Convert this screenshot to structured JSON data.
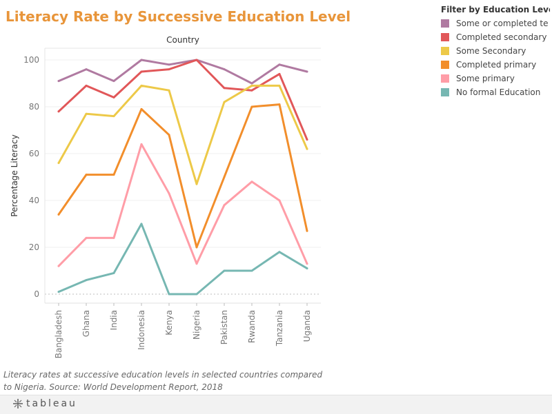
{
  "title": "Literacy Rate by Successive Education Level",
  "legend": {
    "title": "Filter by Education Level ...",
    "items": [
      {
        "label": "Some or completed te..",
        "color": "#b07aa1"
      },
      {
        "label": "Completed secondary",
        "color": "#e15759"
      },
      {
        "label": "Some Secondary",
        "color": "#edc948"
      },
      {
        "label": "Completed primary",
        "color": "#f28e2b"
      },
      {
        "label": "Some primary",
        "color": "#ff9da7"
      },
      {
        "label": "No formal Education",
        "color": "#76b7b2"
      }
    ]
  },
  "caption": "Literacy rates at successive education levels in selected countries compared to Nigeria. Source: World Development Report, 2018",
  "footer": {
    "brand": "tableau"
  },
  "chart_data": {
    "type": "line",
    "title": "",
    "column_header": "Country",
    "ylabel": "Percentage Literacy",
    "xlabel": "",
    "ylim": [
      0,
      105
    ],
    "yticks": [
      0,
      20,
      40,
      60,
      80,
      100
    ],
    "grid": true,
    "legend_position": "right",
    "categories": [
      "Bangladesh",
      "Ghana",
      "India",
      "Indonesia",
      "Kenya",
      "Nigeria",
      "Pakistan",
      "Rwanda",
      "Tanzania",
      "Uganda"
    ],
    "series": [
      {
        "name": "Some or completed te..",
        "color": "#b07aa1",
        "values": [
          91,
          96,
          91,
          100,
          98,
          100,
          96,
          90,
          98,
          95
        ]
      },
      {
        "name": "Completed secondary",
        "color": "#e15759",
        "values": [
          78,
          89,
          84,
          95,
          96,
          100,
          88,
          87,
          94,
          66
        ]
      },
      {
        "name": "Some Secondary",
        "color": "#edc948",
        "values": [
          56,
          77,
          76,
          89,
          87,
          47,
          82,
          89,
          89,
          62
        ]
      },
      {
        "name": "Completed primary",
        "color": "#f28e2b",
        "values": [
          34,
          51,
          51,
          79,
          68,
          20,
          50,
          80,
          81,
          27
        ]
      },
      {
        "name": "Some primary",
        "color": "#ff9da7",
        "values": [
          12,
          24,
          24,
          64,
          43,
          13,
          38,
          48,
          40,
          13
        ]
      },
      {
        "name": "No formal Education",
        "color": "#76b7b2",
        "values": [
          1,
          6,
          9,
          30,
          0,
          0,
          10,
          10,
          18,
          11
        ]
      }
    ]
  }
}
